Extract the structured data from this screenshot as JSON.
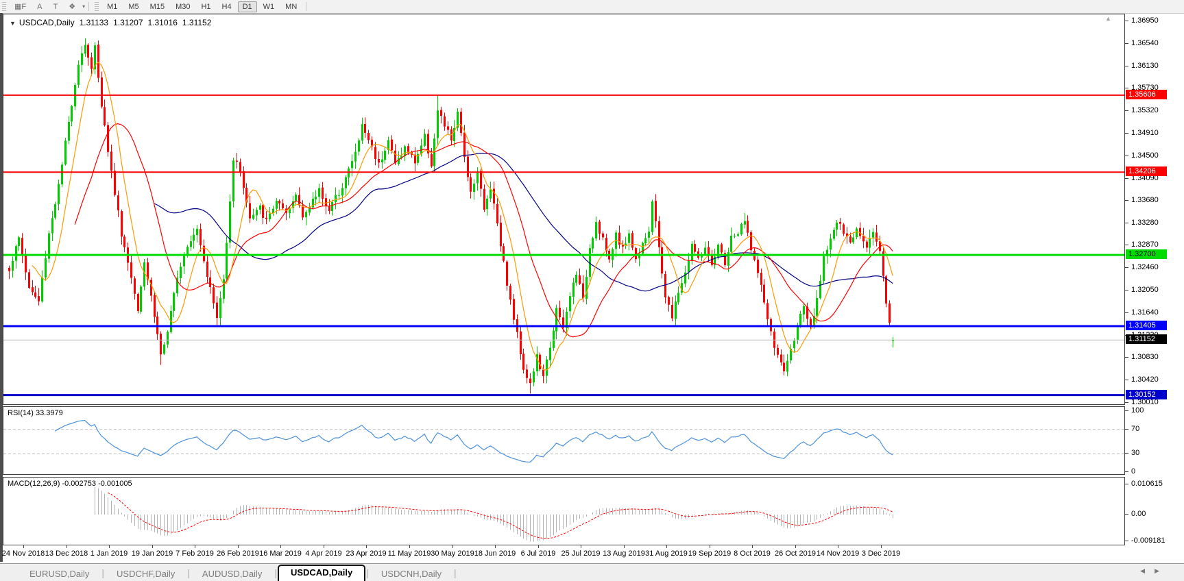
{
  "toolbar": {
    "tools": [
      {
        "id": "grid-pattern-tool",
        "glyph": "▦",
        "suffix": "F"
      },
      {
        "id": "arrow-style-tool",
        "glyph": "A",
        "suffix": ""
      },
      {
        "id": "text-label-tool",
        "glyph": "T",
        "suffix": ""
      },
      {
        "id": "shapes-tool",
        "glyph": "❖",
        "suffix": ""
      }
    ],
    "shapes_caret": "▾",
    "timeframes": [
      "M1",
      "M5",
      "M15",
      "M30",
      "H1",
      "H4",
      "D1",
      "W1",
      "MN"
    ],
    "active_timeframe": "D1"
  },
  "chart": {
    "dropdown_icon": "▼",
    "symbol": "USDCAD,Daily",
    "open": "1.31133",
    "high": "1.31207",
    "low": "1.31016",
    "close": "1.31152",
    "shift_marker_icon": "▲"
  },
  "price_axis": {
    "ticks": [
      "1.36950",
      "1.36540",
      "1.36130",
      "1.35730",
      "1.35320",
      "1.34910",
      "1.34500",
      "1.34090",
      "1.33680",
      "1.33280",
      "1.32870",
      "1.32460",
      "1.32050",
      "1.31640",
      "1.31230",
      "1.30830",
      "1.30420",
      "1.30010"
    ],
    "top_price": 1.3695,
    "bottom_price": 1.3001
  },
  "hlines": [
    {
      "price": 1.35606,
      "label": "1.35606",
      "color": "#ff0000",
      "text_color": "#ffffff",
      "width": 2
    },
    {
      "price": 1.34206,
      "label": "1.34206",
      "color": "#ff0000",
      "text_color": "#ffffff",
      "width": 2
    },
    {
      "price": 1.327,
      "label": "1.32700",
      "color": "#00dc00",
      "text_color": "#000000",
      "width": 3
    },
    {
      "price": 1.31405,
      "label": "1.31405",
      "color": "#0000ff",
      "text_color": "#ffffff",
      "width": 3
    },
    {
      "price": 1.30152,
      "label": "1.30152",
      "color": "#0000cd",
      "text_color": "#ffffff",
      "width": 3
    }
  ],
  "current_price": {
    "price": 1.31152,
    "label": "1.31152",
    "line_color": "#b8b8b8",
    "tag_bg": "#000000",
    "tag_text": "#ffffff"
  },
  "chart_data": {
    "type": "candlestick",
    "symbol": "USDCAD",
    "timeframe": "Daily",
    "bars_count": 269,
    "visible_price_range": [
      1.3001,
      1.3695
    ],
    "last_bar": {
      "open": 1.31133,
      "high": 1.31207,
      "low": 1.31016,
      "close": 1.31152
    },
    "up_color": "#00cc00",
    "down_color": "#ff0000",
    "moving_averages": [
      {
        "period": 8,
        "color": "#ff9900"
      },
      {
        "period": 21,
        "color": "#ff0000"
      },
      {
        "period": 45,
        "color": "#000080"
      }
    ],
    "price_path_anchors": [
      [
        0,
        1.3245
      ],
      [
        3,
        1.33
      ],
      [
        6,
        1.321
      ],
      [
        9,
        1.3185
      ],
      [
        12,
        1.331
      ],
      [
        15,
        1.3395
      ],
      [
        18,
        1.351
      ],
      [
        21,
        1.362
      ],
      [
        23,
        1.3655
      ],
      [
        25,
        1.3605
      ],
      [
        26,
        1.3648
      ],
      [
        28,
        1.3545
      ],
      [
        31,
        1.342
      ],
      [
        34,
        1.331
      ],
      [
        37,
        1.323
      ],
      [
        39,
        1.3175
      ],
      [
        41,
        1.326
      ],
      [
        43,
        1.3195
      ],
      [
        46,
        1.309
      ],
      [
        48,
        1.3125
      ],
      [
        51,
        1.3235
      ],
      [
        54,
        1.329
      ],
      [
        57,
        1.332
      ],
      [
        60,
        1.3235
      ],
      [
        63,
        1.3155
      ],
      [
        65,
        1.3225
      ],
      [
        68,
        1.3445
      ],
      [
        70,
        1.3425
      ],
      [
        73,
        1.3335
      ],
      [
        76,
        1.3355
      ],
      [
        78,
        1.333
      ],
      [
        81,
        1.337
      ],
      [
        84,
        1.334
      ],
      [
        87,
        1.338
      ],
      [
        89,
        1.3345
      ],
      [
        91,
        1.3355
      ],
      [
        94,
        1.339
      ],
      [
        97,
        1.335
      ],
      [
        100,
        1.3385
      ],
      [
        103,
        1.3425
      ],
      [
        105,
        1.3455
      ],
      [
        107,
        1.3505
      ],
      [
        109,
        1.348
      ],
      [
        112,
        1.3435
      ],
      [
        115,
        1.348
      ],
      [
        117,
        1.3435
      ],
      [
        120,
        1.3465
      ],
      [
        123,
        1.344
      ],
      [
        126,
        1.3485
      ],
      [
        128,
        1.3435
      ],
      [
        130,
        1.353
      ],
      [
        132,
        1.3505
      ],
      [
        134,
        1.348
      ],
      [
        136,
        1.3525
      ],
      [
        138,
        1.345
      ],
      [
        140,
        1.3385
      ],
      [
        142,
        1.3425
      ],
      [
        144,
        1.335
      ],
      [
        146,
        1.3395
      ],
      [
        148,
        1.333
      ],
      [
        150,
        1.3255
      ],
      [
        152,
        1.3185
      ],
      [
        154,
        1.3125
      ],
      [
        156,
        1.3065
      ],
      [
        158,
        1.3035
      ],
      [
        160,
        1.3085
      ],
      [
        162,
        1.3045
      ],
      [
        164,
        1.3105
      ],
      [
        166,
        1.317
      ],
      [
        168,
        1.3135
      ],
      [
        170,
        1.3195
      ],
      [
        172,
        1.324
      ],
      [
        174,
        1.3185
      ],
      [
        176,
        1.3285
      ],
      [
        178,
        1.333
      ],
      [
        180,
        1.33
      ],
      [
        182,
        1.3255
      ],
      [
        184,
        1.331
      ],
      [
        186,
        1.328
      ],
      [
        188,
        1.331
      ],
      [
        190,
        1.326
      ],
      [
        192,
        1.3295
      ],
      [
        194,
        1.3315
      ],
      [
        195,
        1.3365
      ],
      [
        197,
        1.3285
      ],
      [
        199,
        1.3195
      ],
      [
        201,
        1.3155
      ],
      [
        203,
        1.3205
      ],
      [
        205,
        1.3235
      ],
      [
        207,
        1.329
      ],
      [
        209,
        1.326
      ],
      [
        211,
        1.3285
      ],
      [
        213,
        1.3245
      ],
      [
        215,
        1.3285
      ],
      [
        217,
        1.3255
      ],
      [
        219,
        1.33
      ],
      [
        221,
        1.331
      ],
      [
        223,
        1.333
      ],
      [
        225,
        1.3285
      ],
      [
        227,
        1.3235
      ],
      [
        229,
        1.3185
      ],
      [
        231,
        1.3125
      ],
      [
        233,
        1.3085
      ],
      [
        235,
        1.306
      ],
      [
        237,
        1.3095
      ],
      [
        239,
        1.3145
      ],
      [
        241,
        1.317
      ],
      [
        243,
        1.3135
      ],
      [
        245,
        1.3185
      ],
      [
        247,
        1.327
      ],
      [
        249,
        1.33
      ],
      [
        251,
        1.333
      ],
      [
        253,
        1.331
      ],
      [
        255,
        1.329
      ],
      [
        257,
        1.332
      ],
      [
        259,
        1.33
      ],
      [
        260,
        1.329
      ],
      [
        262,
        1.331
      ],
      [
        264,
        1.328
      ],
      [
        265,
        1.3235
      ],
      [
        266,
        1.3185
      ],
      [
        267,
        1.3145
      ],
      [
        268,
        1.31152
      ]
    ]
  },
  "rsi_panel": {
    "label": "RSI(14) 33.3979",
    "value": 33.3979,
    "axis_labels": [
      {
        "value": 100,
        "text": "100"
      },
      {
        "value": 70,
        "text": "70"
      },
      {
        "value": 30,
        "text": "30"
      },
      {
        "value": 0,
        "text": "0"
      }
    ],
    "level_lines": [
      70,
      30
    ],
    "line_color": "#4a90d9",
    "level_color": "#bdbdbd"
  },
  "macd_panel": {
    "label": "MACD(12,26,9) -0.002753 -0.001005",
    "main_value": -0.002753,
    "signal_value": -0.001005,
    "axis_labels": [
      "0.010615",
      "0.00",
      "-0.009181"
    ],
    "hist_color": "#b2b2b2",
    "signal_color": "#ff0000"
  },
  "date_axis": {
    "labels": [
      "24 Nov 2018",
      "13 Dec 2018",
      "1 Jan 2019",
      "19 Jan 2019",
      "7 Feb 2019",
      "26 Feb 2019",
      "16 Mar 2019",
      "4 Apr 2019",
      "23 Apr 2019",
      "11 May 2019",
      "30 May 2019",
      "18 Jun 2019",
      "6 Jul 2019",
      "25 Jul 2019",
      "13 Aug 2019",
      "31 Aug 2019",
      "19 Sep 2019",
      "8 Oct 2019",
      "26 Oct 2019",
      "14 Nov 2019",
      "3 Dec 2019"
    ]
  },
  "tabs": {
    "items": [
      {
        "label": "EURUSD,Daily",
        "active": false
      },
      {
        "label": "USDCHF,Daily",
        "active": false
      },
      {
        "label": "AUDUSD,Daily",
        "active": false
      },
      {
        "label": "USDCAD,Daily",
        "active": true
      },
      {
        "label": "USDCNH,Daily",
        "active": false
      }
    ],
    "scroll_left_icon": "◀",
    "scroll_right_icon": "▶"
  }
}
